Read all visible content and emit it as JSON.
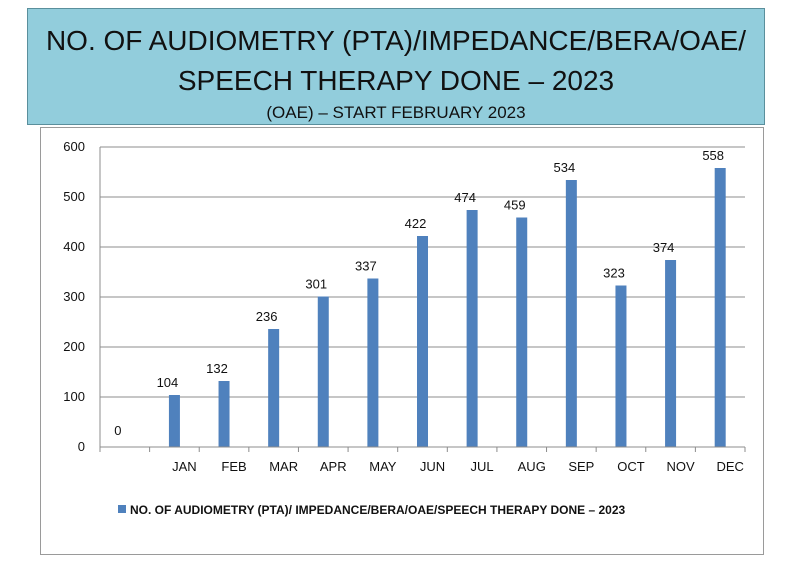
{
  "header": {
    "title_line_1": "NO. OF AUDIOMETRY (PTA)/IMPEDANCE/BERA/OAE/",
    "title_line_2": "SPEECH THERAPY DONE – 2023",
    "subtitle": "(OAE) – START FEBRUARY 2023"
  },
  "colors": {
    "header_background": "#92cddc",
    "bar_color": "#4f81bd"
  },
  "chart_data": {
    "type": "bar",
    "title": "NO. OF AUDIOMETRY (PTA)/IMPEDANCE/BERA/OAE/ SPEECH THERAPY DONE – 2023",
    "subtitle": "(OAE) – START FEBRUARY 2023",
    "categories": [
      "",
      "JAN",
      "FEB",
      "MAR",
      "APR",
      "MAY",
      "JUN",
      "JUL",
      "AUG",
      "SEP",
      "OCT",
      "NOV",
      "DEC"
    ],
    "series": [
      {
        "name": "NO. OF AUDIOMETRY (PTA)/ IMPEDANCE/BERA/OAE/SPEECH THERAPY DONE – 2023",
        "values": [
          0,
          104,
          132,
          236,
          301,
          337,
          422,
          474,
          459,
          534,
          323,
          374,
          558
        ]
      }
    ],
    "ylim": [
      0,
      600
    ],
    "yticks": [
      0,
      100,
      200,
      300,
      400,
      500,
      600
    ],
    "grid": true,
    "legend_position": "bottom",
    "data_labels": true
  }
}
